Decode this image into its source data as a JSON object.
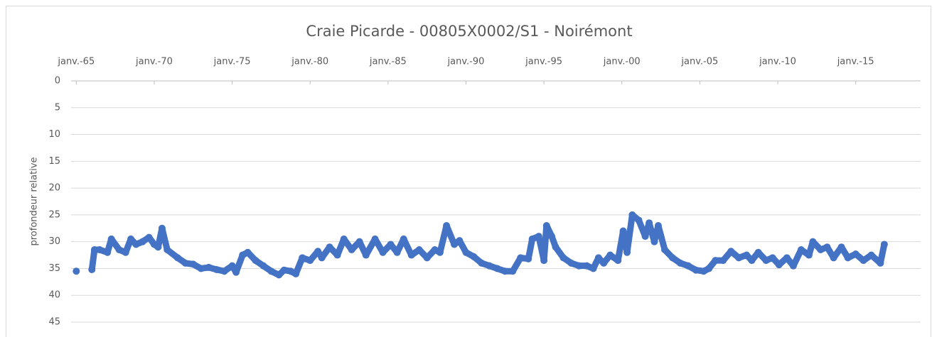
{
  "chart_data": {
    "type": "line",
    "title": "Craie Picarde - 00805X0002/S1 - Noirémont",
    "y_label": "profondeur relative",
    "xlim": [
      "1964-09",
      "2019-03"
    ],
    "xticks": [
      {
        "value": "1965-01",
        "label": "janv.-65"
      },
      {
        "value": "1970-01",
        "label": "janv.-70"
      },
      {
        "value": "1975-01",
        "label": "janv.-75"
      },
      {
        "value": "1980-01",
        "label": "janv.-80"
      },
      {
        "value": "1985-01",
        "label": "janv.-85"
      },
      {
        "value": "1990-01",
        "label": "janv.-90"
      },
      {
        "value": "1995-01",
        "label": "janv.-95"
      },
      {
        "value": "2000-01",
        "label": "janv.-00"
      },
      {
        "value": "2005-01",
        "label": "janv.-05"
      },
      {
        "value": "2010-01",
        "label": "janv.-10"
      },
      {
        "value": "2015-01",
        "label": "janv.-15"
      }
    ],
    "ylim": [
      0,
      45
    ],
    "yticks": [
      0,
      5,
      10,
      15,
      20,
      25,
      30,
      35,
      40,
      45
    ],
    "y_inverted": true,
    "grid": true,
    "x_axis_position": "top",
    "series": [
      {
        "name": "profondeur relative",
        "color": "#4472c4",
        "x": [
          "1965-01",
          "1965-07",
          "1966-01",
          "1966-03",
          "1966-07",
          "1967-01",
          "1967-04",
          "1967-10",
          "1968-03",
          "1968-07",
          "1968-11",
          "1969-04",
          "1969-09",
          "1970-01",
          "1970-04",
          "1970-07",
          "1970-11",
          "1971-07",
          "1972-01",
          "1972-07",
          "1973-01",
          "1973-07",
          "1974-01",
          "1974-07",
          "1975-01",
          "1975-04",
          "1975-09",
          "1976-01",
          "1976-07",
          "1977-01",
          "1977-07",
          "1978-01",
          "1978-05",
          "1978-10",
          "1979-02",
          "1979-07",
          "1980-01",
          "1980-07",
          "1980-10",
          "1981-04",
          "1981-10",
          "1982-03",
          "1982-09",
          "1983-03",
          "1983-08",
          "1984-03",
          "1984-09",
          "1985-03",
          "1985-08",
          "1986-01",
          "1986-07",
          "1987-01",
          "1987-07",
          "1988-01",
          "1988-05",
          "1988-10",
          "1989-04",
          "1989-08",
          "1990-01",
          "1990-07",
          "1991-01",
          "1991-07",
          "1992-01",
          "1992-07",
          "1993-01",
          "1993-07",
          "1994-01",
          "1994-04",
          "1994-09",
          "1995-01",
          "1995-03",
          "1995-07",
          "1995-10",
          "1996-04",
          "1996-10",
          "1997-04",
          "1997-10",
          "1998-03",
          "1998-07",
          "1998-11",
          "1999-04",
          "1999-10",
          "2000-02",
          "2000-05",
          "2000-09",
          "2001-02",
          "2001-07",
          "2001-10",
          "2002-02",
          "2002-05",
          "2002-10",
          "2003-04",
          "2003-10",
          "2004-04",
          "2004-10",
          "2005-04",
          "2005-08",
          "2006-01",
          "2006-07",
          "2007-01",
          "2007-07",
          "2008-01",
          "2008-05",
          "2008-10",
          "2009-04",
          "2009-09",
          "2010-02",
          "2010-08",
          "2011-01",
          "2011-07",
          "2012-01",
          "2012-04",
          "2012-10",
          "2013-03",
          "2013-08",
          "2014-02",
          "2014-07",
          "2015-01",
          "2015-07",
          "2016-01",
          "2016-08",
          "2016-11"
        ],
        "values": [
          35.5,
          null,
          35.2,
          31.5,
          31.5,
          32,
          29.5,
          31.5,
          32,
          29.5,
          30.5,
          30,
          29.2,
          30.5,
          31,
          27.5,
          31.5,
          33,
          34,
          34.2,
          35,
          34.8,
          35.2,
          35.5,
          34.5,
          35.7,
          32.5,
          32,
          33.5,
          34.5,
          35.5,
          36.2,
          35.3,
          35.5,
          36,
          33,
          33.5,
          31.8,
          33,
          31,
          32.5,
          29.5,
          31.5,
          30,
          32.5,
          29.5,
          32,
          30.5,
          32,
          29.5,
          32.5,
          31.5,
          33,
          31.5,
          32,
          27,
          30.5,
          29.8,
          32,
          32.8,
          34,
          34.5,
          35,
          35.5,
          35.5,
          33,
          33.2,
          29.5,
          29,
          33.5,
          27,
          29,
          31,
          33,
          34,
          34.5,
          34.5,
          35,
          33,
          34,
          32.5,
          33.5,
          28,
          32,
          25,
          26,
          29,
          26.5,
          30,
          27,
          31.5,
          33,
          34,
          34.5,
          35.3,
          35.5,
          35,
          33.5,
          33.5,
          31.8,
          33,
          32.5,
          33.5,
          32,
          33.5,
          33,
          34.3,
          33,
          34.5,
          31.5,
          32.5,
          30,
          31.5,
          31,
          33,
          31,
          33,
          32.3,
          33.5,
          32.5,
          34,
          30.5
        ]
      }
    ]
  }
}
